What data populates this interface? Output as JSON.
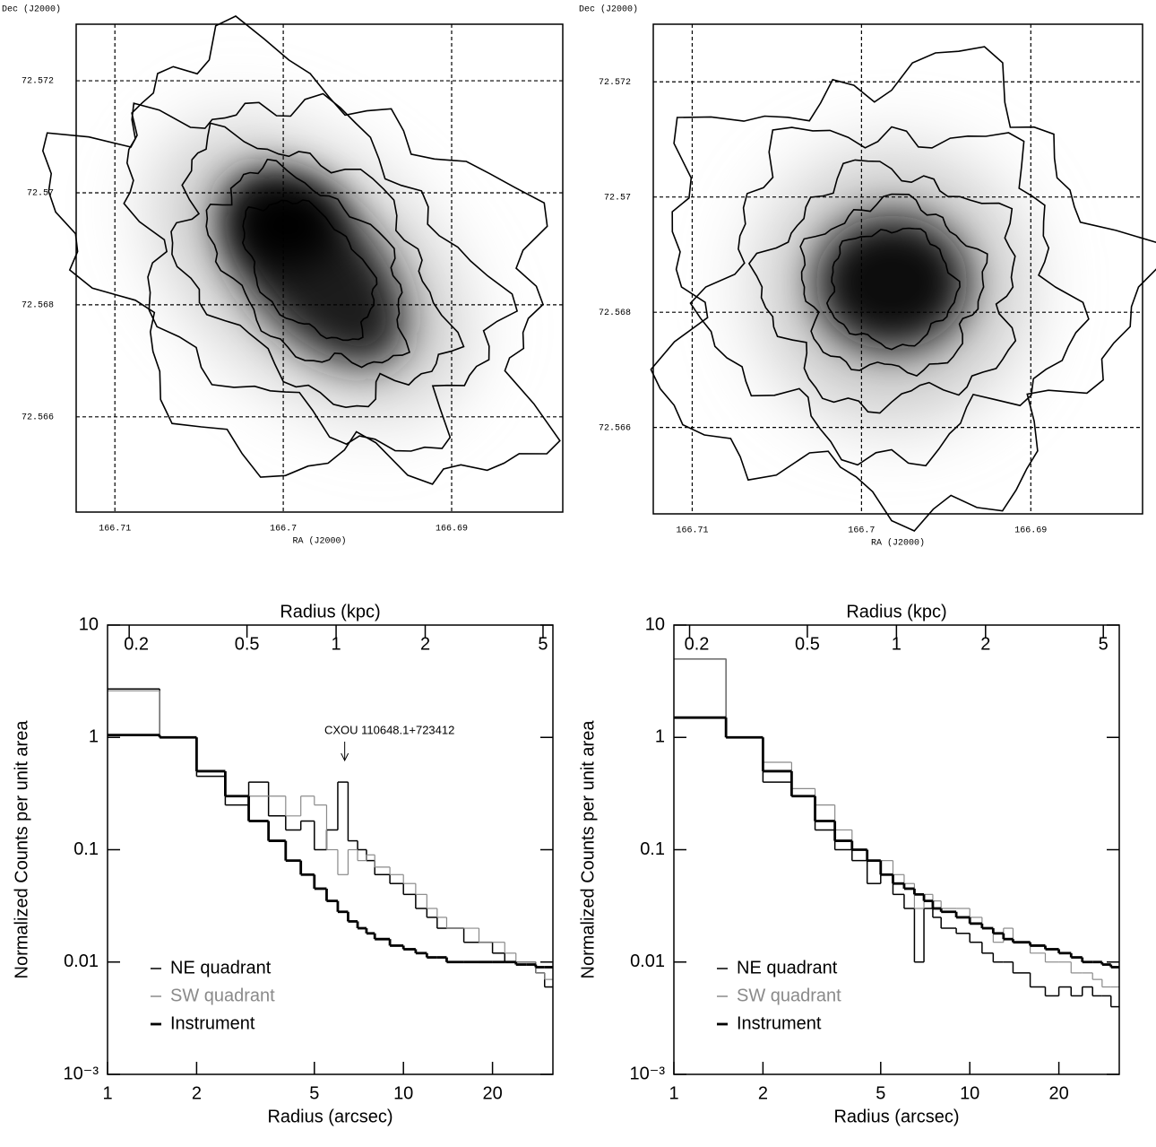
{
  "chart_data": [
    {
      "type": "image",
      "xlabel": "RA (J2000)",
      "ylabel": "Dec (J2000)",
      "xlim": [
        166.7123,
        166.6834
      ],
      "ylim": [
        72.5643,
        72.57301
      ],
      "xticks": [
        166.71,
        166.7,
        166.69
      ],
      "yticks": [
        72.566,
        72.568,
        72.57,
        72.572
      ],
      "grid": true
    },
    {
      "type": "image",
      "xlabel": "RA (J2000)",
      "ylabel": "Dec (J2000)",
      "xlim": [
        166.7123,
        166.6834
      ],
      "ylim": [
        72.5645,
        72.573
      ],
      "xticks": [
        166.71,
        166.7,
        166.69
      ],
      "yticks": [
        72.566,
        72.568,
        72.57,
        72.572
      ],
      "grid": true
    },
    {
      "type": "histogram",
      "xlog": true,
      "ylog": true,
      "title": "Radius (kpc)",
      "xlabel": "Radius (arcsec)",
      "ylabel": "Normalized Counts per unit area",
      "annotation": "CXOU 110648.1+723412",
      "legend": "lower left",
      "xlim": [
        1,
        32
      ],
      "ylim": [
        0.001,
        10
      ],
      "xticks": [
        1,
        2,
        5,
        10,
        20
      ],
      "yticks": [
        {
          "value": 0.001,
          "label": "10⁻³"
        },
        0.01,
        0.1,
        1,
        10
      ],
      "x2lim": [
        0.169,
        5.4
      ],
      "x2ticks": [
        0.2,
        0.5,
        1,
        2,
        5
      ],
      "bins": [
        1,
        1.5,
        2,
        2.5,
        3,
        3.5,
        4,
        4.5,
        5,
        5.5,
        6,
        6.5,
        7,
        7.5,
        8,
        9,
        10,
        11,
        12,
        13,
        14,
        16,
        18,
        20,
        22,
        24,
        26,
        28,
        30,
        32
      ],
      "series": [
        {
          "name": "NE quadrant",
          "color": "#000000",
          "values": [
            2.7,
            1.0,
            0.45,
            0.25,
            0.4,
            0.2,
            0.15,
            0.18,
            0.1,
            0.15,
            0.4,
            0.12,
            0.1,
            0.08,
            0.06,
            0.05,
            0.04,
            0.03,
            0.025,
            0.02,
            0.02,
            0.015,
            0.015,
            0.012,
            0.01,
            0.01,
            0.01,
            0.008,
            0.006
          ]
        },
        {
          "name": "SW quadrant",
          "color": "#8a8a8a",
          "values": [
            2.6,
            1.0,
            0.5,
            0.3,
            0.3,
            0.3,
            0.2,
            0.3,
            0.25,
            0.1,
            0.06,
            0.1,
            0.08,
            0.09,
            0.07,
            0.06,
            0.05,
            0.04,
            0.03,
            0.025,
            0.02,
            0.02,
            0.015,
            0.015,
            0.012,
            0.01,
            0.01,
            0.008,
            0.007
          ]
        },
        {
          "name": "Instrument",
          "color": "#000000",
          "values": [
            1.05,
            1.0,
            0.5,
            0.3,
            0.18,
            0.12,
            0.08,
            0.06,
            0.045,
            0.035,
            0.028,
            0.023,
            0.02,
            0.018,
            0.016,
            0.014,
            0.013,
            0.012,
            0.011,
            0.011,
            0.01,
            0.01,
            0.01,
            0.01,
            0.01,
            0.0095,
            0.0095,
            0.009,
            0.009
          ]
        }
      ]
    },
    {
      "type": "histogram",
      "xlog": true,
      "ylog": true,
      "title": "Radius (kpc)",
      "xlabel": "Radius (arcsec)",
      "ylabel": "Normalized Counts per unit area",
      "legend": "lower left",
      "xlim": [
        1,
        32
      ],
      "ylim": [
        0.001,
        10
      ],
      "xticks": [
        1,
        2,
        5,
        10,
        20
      ],
      "yticks": [
        {
          "value": 0.001,
          "label": "10⁻³"
        },
        0.01,
        0.1,
        1,
        10
      ],
      "x2lim": [
        0.177,
        5.66
      ],
      "x2ticks": [
        0.2,
        0.5,
        1,
        2,
        5
      ],
      "bins": [
        1,
        1.5,
        2,
        2.5,
        3,
        3.5,
        4,
        4.5,
        5,
        5.5,
        6,
        6.5,
        7,
        7.5,
        8,
        9,
        10,
        11,
        12,
        13,
        14,
        16,
        18,
        20,
        22,
        24,
        26,
        28,
        30,
        32
      ],
      "series": [
        {
          "name": "NE quadrant",
          "color": "#000000",
          "values": [
            5.0,
            1.0,
            0.4,
            0.3,
            0.15,
            0.1,
            0.08,
            0.05,
            0.06,
            0.04,
            0.03,
            0.01,
            0.03,
            0.025,
            0.02,
            0.018,
            0.015,
            0.012,
            0.01,
            0.01,
            0.008,
            0.006,
            0.005,
            0.006,
            0.005,
            0.006,
            0.005,
            0.005,
            0.004
          ]
        },
        {
          "name": "SW quadrant",
          "color": "#8a8a8a",
          "values": [
            5.0,
            1.0,
            0.6,
            0.35,
            0.25,
            0.15,
            0.1,
            0.08,
            0.08,
            0.06,
            0.05,
            0.03,
            0.04,
            0.035,
            0.03,
            0.03,
            0.025,
            0.02,
            0.015,
            0.02,
            0.015,
            0.012,
            0.01,
            0.01,
            0.008,
            0.008,
            0.007,
            0.006,
            0.006
          ]
        },
        {
          "name": "Instrument",
          "color": "#000000",
          "values": [
            1.5,
            1.0,
            0.5,
            0.3,
            0.18,
            0.12,
            0.1,
            0.08,
            0.06,
            0.05,
            0.045,
            0.04,
            0.035,
            0.03,
            0.028,
            0.025,
            0.022,
            0.02,
            0.018,
            0.016,
            0.015,
            0.014,
            0.013,
            0.012,
            0.011,
            0.01,
            0.01,
            0.0095,
            0.009
          ]
        }
      ]
    }
  ]
}
